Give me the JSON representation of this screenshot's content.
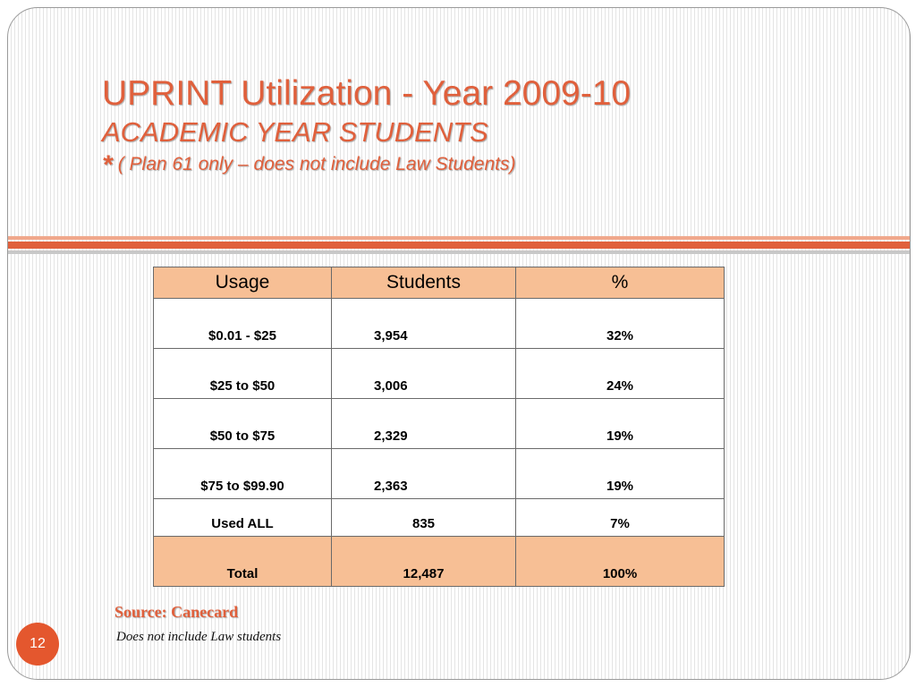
{
  "slide": {
    "title_line1": "UPRINT Utilization -  Year 2009-10",
    "title_line2": "ACADEMIC YEAR STUDENTS",
    "title_line3_star": "*",
    "title_line3_text": "( Plan 61 only – does not include Law Students)",
    "source_label": "Source: Canecard",
    "note": "Does not include Law students",
    "page_number": "12",
    "accent_color": "#e0603c"
  },
  "table": {
    "headers": [
      "Usage",
      "Students",
      "%"
    ],
    "rows": [
      {
        "usage": "$0.01 - $25",
        "students": "3,954",
        "percent": "32%"
      },
      {
        "usage": "$25 to $50",
        "students": "3,006",
        "percent": "24%"
      },
      {
        "usage": "$50 to $75",
        "students": "2,329",
        "percent": "19%"
      },
      {
        "usage": "$75 to $99.90",
        "students": "2,363",
        "percent": "19%"
      },
      {
        "usage": "Used ALL",
        "students": "835",
        "percent": "7%"
      },
      {
        "usage": "Total",
        "students": "12,487",
        "percent": "100%"
      }
    ]
  }
}
